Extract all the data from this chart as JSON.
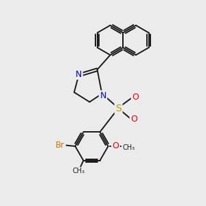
{
  "background_color": "#ebebeb",
  "bond_color": "#1a1a1a",
  "bond_width": 1.4,
  "atom_colors": {
    "N": "#0000ee",
    "S": "#b8a000",
    "O": "#ee0000",
    "Br": "#c87800",
    "C": "#1a1a1a"
  },
  "naph_r": 0.72,
  "benz_r": 0.8
}
